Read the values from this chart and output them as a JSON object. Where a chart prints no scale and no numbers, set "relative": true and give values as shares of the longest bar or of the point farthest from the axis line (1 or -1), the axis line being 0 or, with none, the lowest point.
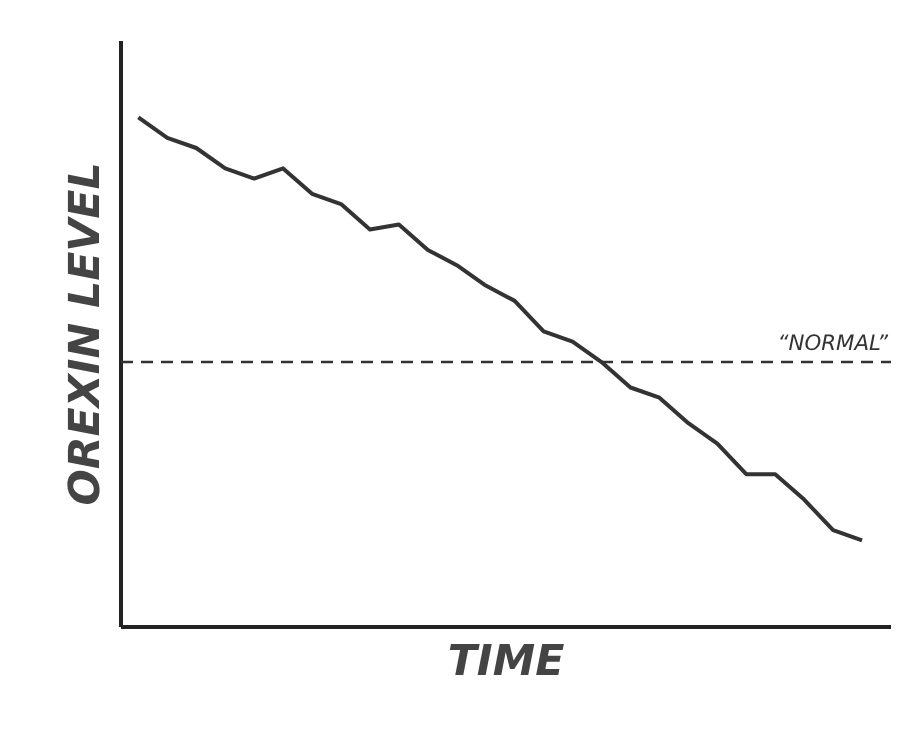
{
  "chart_data": {
    "type": "line",
    "relative": true,
    "xlabel": "TIME",
    "ylabel": "OREXIN LEVEL",
    "categories": [
      null,
      null,
      null,
      null,
      null,
      null,
      null,
      null,
      null,
      null,
      null,
      null,
      null,
      null,
      null,
      null,
      null,
      null,
      null,
      null,
      null,
      null,
      null,
      null,
      null,
      null
    ],
    "series": [
      {
        "color": "#333333",
        "values": [
          1.0,
          0.96,
          0.94,
          0.9,
          0.88,
          0.9,
          0.85,
          0.83,
          0.78,
          0.79,
          0.74,
          0.71,
          0.67,
          0.64,
          0.58,
          0.56,
          0.52,
          0.47,
          0.45,
          0.4,
          0.36,
          0.3,
          0.3,
          0.25,
          0.19,
          0.17
        ]
      }
    ],
    "ref_lines": [
      {
        "axis": "y",
        "value": 0.52,
        "label": "“NORMAL”",
        "color": "#333333",
        "line_style": "dashed"
      }
    ],
    "marker": "none",
    "line_style": "solid"
  }
}
